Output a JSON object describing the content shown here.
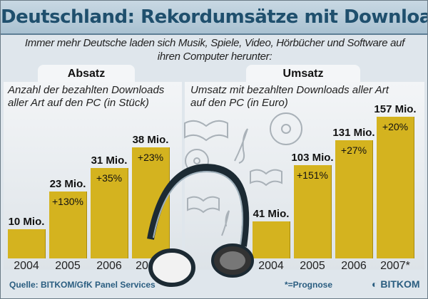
{
  "title": "Deutschland: Rekordumsätze mit Downloads",
  "subtitle_line1": "Immer mehr Deutsche laden sich Musik, Spiele, Video, Hörbücher und Software auf",
  "subtitle_line2": "ihren Computer herunter:",
  "footer": {
    "source": "Quelle: BITKOM/GfK Panel Services",
    "note": "*=Prognose",
    "logo": "BITKOM"
  },
  "colors": {
    "bar": "#d4b31f",
    "title": "#1f4f6d"
  },
  "chart_data": [
    {
      "type": "bar",
      "tab": "Absatz",
      "title": "Anzahl der bezahlten Downloads",
      "title2": "aller Art auf den PC (in Stück)",
      "categories": [
        "2004",
        "2005",
        "2006",
        "2007*"
      ],
      "values": [
        10,
        23,
        31,
        38
      ],
      "value_labels": [
        "10 Mio.",
        "23 Mio.",
        "31 Mio.",
        "38 Mio."
      ],
      "growth_labels": [
        "",
        "+130%",
        "+35%",
        "+23%"
      ]
    },
    {
      "type": "bar",
      "tab": "Umsatz",
      "title": "Umsatz mit bezahlten Downloads aller Art",
      "title2": "auf den PC (in Euro)",
      "categories": [
        "2004",
        "2005",
        "2006",
        "2007*"
      ],
      "values": [
        41,
        103,
        131,
        157
      ],
      "value_labels": [
        "41 Mio.",
        "103 Mio.",
        "131 Mio.",
        "157 Mio."
      ],
      "growth_labels": [
        "",
        "+151%",
        "+27%",
        "+20%"
      ]
    }
  ]
}
